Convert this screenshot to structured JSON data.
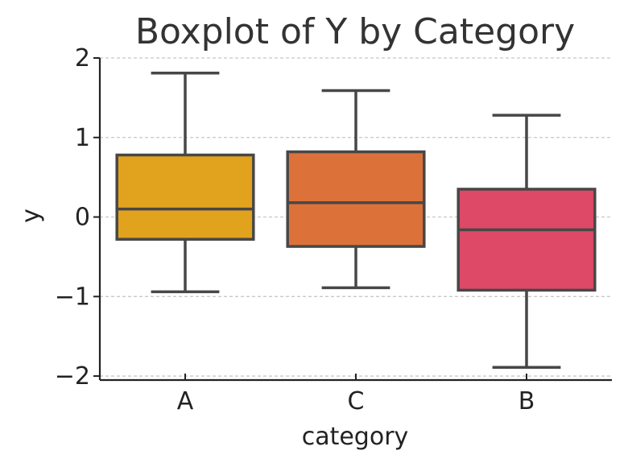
{
  "chart_data": {
    "type": "box",
    "title": "Boxplot of Y by Category",
    "xlabel": "category",
    "ylabel": "y",
    "ylim": [
      -2.05,
      2.0
    ],
    "yticks": [
      -2,
      -1,
      0,
      1,
      2
    ],
    "ytick_labels": [
      "−2",
      "−1",
      "0",
      "1",
      "2"
    ],
    "grid": {
      "y": true,
      "x": false,
      "style": "dashed"
    },
    "categories": [
      "A",
      "C",
      "B"
    ],
    "boxes": [
      {
        "category": "A",
        "whisker_low": -0.94,
        "q1": -0.28,
        "median": 0.1,
        "q3": 0.78,
        "whisker_high": 1.81,
        "color": "#E1A21E"
      },
      {
        "category": "C",
        "whisker_low": -0.89,
        "q1": -0.37,
        "median": 0.18,
        "q3": 0.82,
        "whisker_high": 1.59,
        "color": "#DC713A"
      },
      {
        "category": "B",
        "whisker_low": -1.89,
        "q1": -0.92,
        "median": -0.16,
        "q3": 0.35,
        "whisker_high": 1.28,
        "color": "#DD4967"
      }
    ],
    "colors": {
      "box_edge": "#474747",
      "grid": "#c8c8c8",
      "axis": "#222222"
    }
  }
}
